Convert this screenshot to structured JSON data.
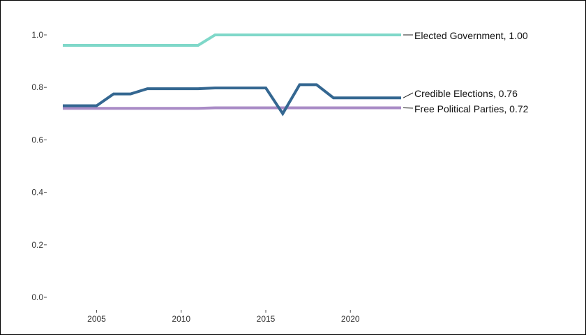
{
  "chart_data": {
    "type": "line",
    "title": "",
    "xlabel": "",
    "ylabel": "",
    "xlim": [
      2002.5,
      2023.5
    ],
    "ylim": [
      0,
      1.05
    ],
    "x_ticks": [
      2005,
      2010,
      2015,
      2020
    ],
    "y_ticks": [
      0.0,
      0.2,
      0.4,
      0.6,
      0.8,
      1.0
    ],
    "y_tick_labels": [
      "0.0",
      "0.2",
      "0.4",
      "0.6",
      "0.8",
      "1.0"
    ],
    "grid": false,
    "legend": "direct labels at line ends",
    "x": [
      2003,
      2004,
      2005,
      2006,
      2007,
      2008,
      2009,
      2010,
      2011,
      2012,
      2013,
      2014,
      2015,
      2016,
      2017,
      2018,
      2019,
      2020,
      2021,
      2022,
      2023
    ],
    "series": [
      {
        "name": "Elected Government",
        "label": "Elected Government, 1.00",
        "color": "#7fd8c9",
        "values": [
          0.96,
          0.96,
          0.96,
          0.96,
          0.96,
          0.96,
          0.96,
          0.96,
          0.96,
          1.0,
          1.0,
          1.0,
          1.0,
          1.0,
          1.0,
          1.0,
          1.0,
          1.0,
          1.0,
          1.0,
          1.0
        ]
      },
      {
        "name": "Credible Elections",
        "label": "Credible Elections, 0.76",
        "color": "#346791",
        "values": [
          0.73,
          0.73,
          0.73,
          0.775,
          0.775,
          0.795,
          0.795,
          0.795,
          0.795,
          0.798,
          0.798,
          0.798,
          0.798,
          0.7,
          0.81,
          0.81,
          0.76,
          0.76,
          0.76,
          0.76,
          0.76
        ]
      },
      {
        "name": "Free Political Parties",
        "label": "Free Political Parties, 0.72",
        "color": "#a98bc6",
        "values": [
          0.72,
          0.72,
          0.72,
          0.72,
          0.72,
          0.72,
          0.72,
          0.72,
          0.72,
          0.722,
          0.722,
          0.722,
          0.722,
          0.722,
          0.722,
          0.722,
          0.722,
          0.722,
          0.722,
          0.722,
          0.722
        ]
      }
    ]
  }
}
